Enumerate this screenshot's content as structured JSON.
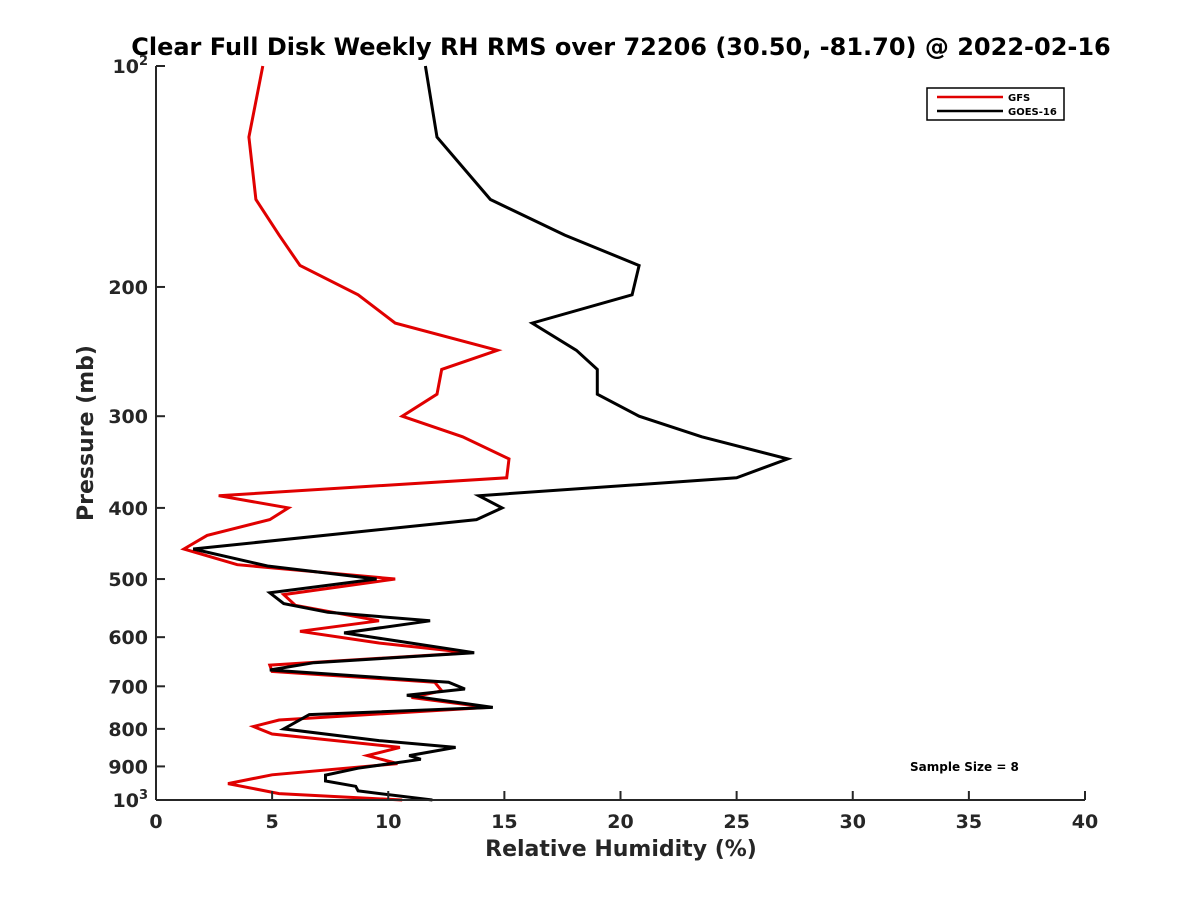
{
  "chart_data": {
    "type": "line",
    "title": "Clear Full Disk Weekly RH RMS over 72206 (30.50, -81.70) @ 2022-02-16",
    "xlabel": "Relative Humidity (%)",
    "ylabel": "Pressure (mb)",
    "xlim": [
      0,
      40
    ],
    "ylim": [
      100,
      1000
    ],
    "y_scale": "log",
    "y_reversed": true,
    "x_ticks": [
      "0",
      "5",
      "10",
      "15",
      "20",
      "25",
      "30",
      "35",
      "40"
    ],
    "y_ticks": [
      {
        "value": 100,
        "base": "10",
        "exp": "2"
      },
      {
        "value": 200,
        "base": "200",
        "exp": ""
      },
      {
        "value": 300,
        "base": "300",
        "exp": ""
      },
      {
        "value": 400,
        "base": "400",
        "exp": ""
      },
      {
        "value": 500,
        "base": "500",
        "exp": ""
      },
      {
        "value": 600,
        "base": "600",
        "exp": ""
      },
      {
        "value": 700,
        "base": "700",
        "exp": ""
      },
      {
        "value": 800,
        "base": "800",
        "exp": ""
      },
      {
        "value": 900,
        "base": "900",
        "exp": ""
      },
      {
        "value": 1000,
        "base": "10",
        "exp": "3"
      }
    ],
    "grid": false,
    "legend_position": "top-right",
    "annotation": "Sample Size = 8",
    "series": [
      {
        "name": "GFS",
        "color": "#e00000",
        "points": [
          [
            4.6,
            100
          ],
          [
            4.0,
            125
          ],
          [
            4.3,
            152
          ],
          [
            5.3,
            170
          ],
          [
            6.2,
            187
          ],
          [
            8.7,
            205
          ],
          [
            10.3,
            224
          ],
          [
            14.7,
            244
          ],
          [
            12.3,
            259
          ],
          [
            12.1,
            280
          ],
          [
            10.6,
            300
          ],
          [
            13.2,
            320
          ],
          [
            15.2,
            343
          ],
          [
            15.1,
            364
          ],
          [
            2.7,
            385
          ],
          [
            5.7,
            400
          ],
          [
            4.9,
            415
          ],
          [
            2.2,
            436
          ],
          [
            1.2,
            455
          ],
          [
            3.5,
            478
          ],
          [
            10.3,
            500
          ],
          [
            5.5,
            525
          ],
          [
            6.0,
            543
          ],
          [
            9.6,
            570
          ],
          [
            6.2,
            589
          ],
          [
            9.6,
            611
          ],
          [
            13.5,
            630
          ],
          [
            4.9,
            655
          ],
          [
            5.0,
            668
          ],
          [
            12.0,
            691
          ],
          [
            12.3,
            710
          ],
          [
            11.0,
            725
          ],
          [
            14.3,
            748
          ],
          [
            5.3,
            778
          ],
          [
            4.2,
            794
          ],
          [
            5.0,
            813
          ],
          [
            10.5,
            848
          ],
          [
            9.1,
            870
          ],
          [
            10.4,
            892
          ],
          [
            5.0,
            924
          ],
          [
            3.1,
            950
          ],
          [
            5.3,
            980
          ],
          [
            10.6,
            1000
          ]
        ]
      },
      {
        "name": "GOES-16",
        "color": "#000000",
        "points": [
          [
            11.6,
            100
          ],
          [
            12.1,
            125
          ],
          [
            14.4,
            152
          ],
          [
            17.6,
            170
          ],
          [
            20.8,
            187
          ],
          [
            20.5,
            205
          ],
          [
            16.2,
            224
          ],
          [
            18.1,
            244
          ],
          [
            19.0,
            259
          ],
          [
            19.0,
            280
          ],
          [
            20.8,
            300
          ],
          [
            23.5,
            320
          ],
          [
            27.2,
            343
          ],
          [
            25.0,
            364
          ],
          [
            13.9,
            385
          ],
          [
            14.9,
            400
          ],
          [
            13.8,
            415
          ],
          [
            1.6,
            455
          ],
          [
            4.8,
            480
          ],
          [
            9.5,
            500
          ],
          [
            4.9,
            522
          ],
          [
            5.5,
            540
          ],
          [
            7.4,
            555
          ],
          [
            11.8,
            570
          ],
          [
            8.1,
            592
          ],
          [
            10.5,
            608
          ],
          [
            13.7,
            630
          ],
          [
            6.8,
            650
          ],
          [
            4.9,
            665
          ],
          [
            12.6,
            691
          ],
          [
            13.3,
            706
          ],
          [
            10.8,
            720
          ],
          [
            14.5,
            748
          ],
          [
            6.6,
            765
          ],
          [
            5.5,
            800
          ],
          [
            9.6,
            830
          ],
          [
            12.9,
            848
          ],
          [
            10.9,
            870
          ],
          [
            11.4,
            880
          ],
          [
            8.7,
            905
          ],
          [
            7.3,
            925
          ],
          [
            7.3,
            942
          ],
          [
            8.6,
            958
          ],
          [
            8.7,
            972
          ],
          [
            11.9,
            1000
          ]
        ]
      }
    ]
  }
}
